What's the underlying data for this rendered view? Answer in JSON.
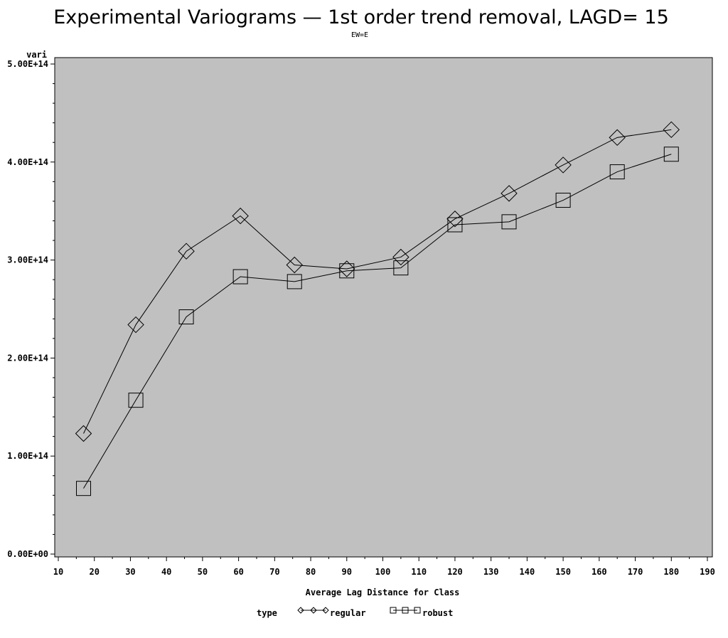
{
  "chart_data": {
    "type": "line",
    "title": "Experimental Variograms — 1st order trend removal, LAGD= 15",
    "subtitle": "EW=E",
    "xlabel": "Average Lag Distance for Class",
    "ylabel": "vari",
    "xlim": [
      10,
      190
    ],
    "ylim": [
      0,
      500000000000000.0
    ],
    "x_ticks": [
      "10",
      "20",
      "30",
      "40",
      "50",
      "60",
      "70",
      "80",
      "90",
      "100",
      "110",
      "120",
      "130",
      "140",
      "150",
      "160",
      "170",
      "180",
      "190"
    ],
    "y_ticks": [
      "0.00E+00",
      "1.00E+14",
      "2.00E+14",
      "3.00E+14",
      "4.00E+14",
      "5.00E+14"
    ],
    "legend": {
      "title": "type",
      "placement": "bottom"
    },
    "x": [
      17,
      31.5,
      45.5,
      60.5,
      75.5,
      90,
      105,
      120,
      135,
      150,
      165,
      180
    ],
    "series": [
      {
        "name": "regular",
        "marker": "diamond",
        "values": [
          123000000000000.0,
          234000000000000.0,
          309000000000000.0,
          345000000000000.0,
          295000000000000.0,
          291000000000000.0,
          303000000000000.0,
          342000000000000.0,
          368000000000000.0,
          397000000000000.0,
          425000000000000.0,
          433000000000000.0
        ]
      },
      {
        "name": "robust",
        "marker": "square",
        "values": [
          67000000000000.0,
          157000000000000.0,
          242000000000000.0,
          283000000000000.0,
          278000000000000.0,
          289000000000000.0,
          292000000000000.0,
          336000000000000.0,
          339000000000000.0,
          361000000000000.0,
          390000000000000.0,
          408000000000000.0
        ]
      }
    ],
    "background": "#c0c0c0",
    "grid": false
  }
}
